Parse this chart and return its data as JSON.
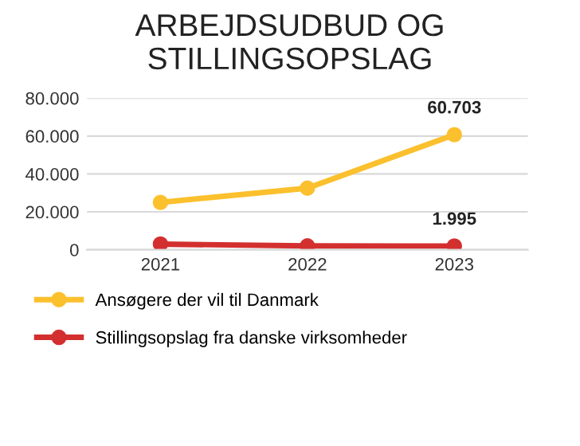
{
  "chart_data": {
    "type": "line",
    "title": "ARBEJDSUDBUD OG\nSTILLINGSOPSLAG",
    "categories": [
      "2021",
      "2022",
      "2023"
    ],
    "series": [
      {
        "name": "Ansøgere der vil til Danmark",
        "color": "#fbc02d",
        "values": [
          25000,
          32500,
          60703
        ],
        "value_labels": [
          null,
          null,
          "60.703"
        ]
      },
      {
        "name": "Stillingsopslag fra danske virksomheder",
        "color": "#d32f2f",
        "values": [
          3000,
          2000,
          1995
        ],
        "value_labels": [
          null,
          null,
          "1.995"
        ]
      }
    ],
    "ylim": [
      0,
      80000
    ],
    "yticks": [
      {
        "value": 0,
        "label": "0"
      },
      {
        "value": 20000,
        "label": "20.000"
      },
      {
        "value": 40000,
        "label": "40.000"
      },
      {
        "value": 60000,
        "label": "60.000"
      },
      {
        "value": 80000,
        "label": "80.000"
      }
    ],
    "grid": "y",
    "legend": "bottom",
    "marker": "circle",
    "line_style": "solid"
  }
}
